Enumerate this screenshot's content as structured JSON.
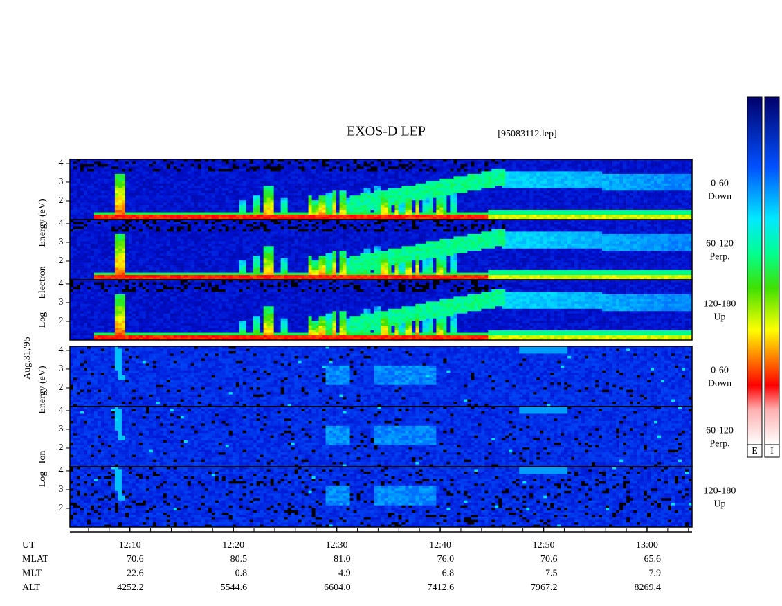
{
  "chart_data": {
    "type": "spectrogram",
    "title": "EXOS-D LEP",
    "subtitle": "[95083112.lep]",
    "date_label": "Aug.31,'95",
    "xlim": [
      724.2,
      784.35
    ],
    "xticks": [
      {
        "value": 730,
        "label": "12:10"
      },
      {
        "value": 740,
        "label": "12:20"
      },
      {
        "value": 750,
        "label": "12:30"
      },
      {
        "value": 760,
        "label": "12:40"
      },
      {
        "value": 770,
        "label": "12:50"
      },
      {
        "value": 780,
        "label": "13:00"
      }
    ],
    "groups": [
      {
        "axis_label": [
          "Log",
          "Electron",
          "Energy (eV)"
        ],
        "species": "electron",
        "ylim": [
          1,
          4.22
        ],
        "yticks": [
          2,
          3,
          4
        ],
        "panels": [
          [
            "0-60",
            "Down"
          ],
          [
            "60-120",
            "Perp."
          ],
          [
            "120-180",
            "Up"
          ]
        ]
      },
      {
        "axis_label": [
          "Log",
          "Ion",
          "Energy (eV)"
        ],
        "species": "ion",
        "ylim": [
          1,
          4.22
        ],
        "yticks": [
          2,
          3,
          4
        ],
        "panels": [
          [
            "0-60",
            "Down"
          ],
          [
            "60-120",
            "Perp."
          ],
          [
            "120-180",
            "Up"
          ]
        ]
      }
    ],
    "colorbar_labels": [
      "E",
      "I"
    ],
    "orbit_table": {
      "ut_label": "UT",
      "rows": [
        {
          "label": "MLAT",
          "values": [
            "70.6",
            "80.5",
            "81.0",
            "76.0",
            "70.6",
            "65.6"
          ]
        },
        {
          "label": "MLT",
          "values": [
            "22.6",
            "0.8",
            "4.9",
            "6.8",
            "7.5",
            "7.9"
          ]
        },
        {
          "label": "ALT",
          "values": [
            "4252.2",
            "5544.6",
            "6604.0",
            "7412.6",
            "7967.2",
            "8269.4"
          ]
        }
      ]
    }
  }
}
